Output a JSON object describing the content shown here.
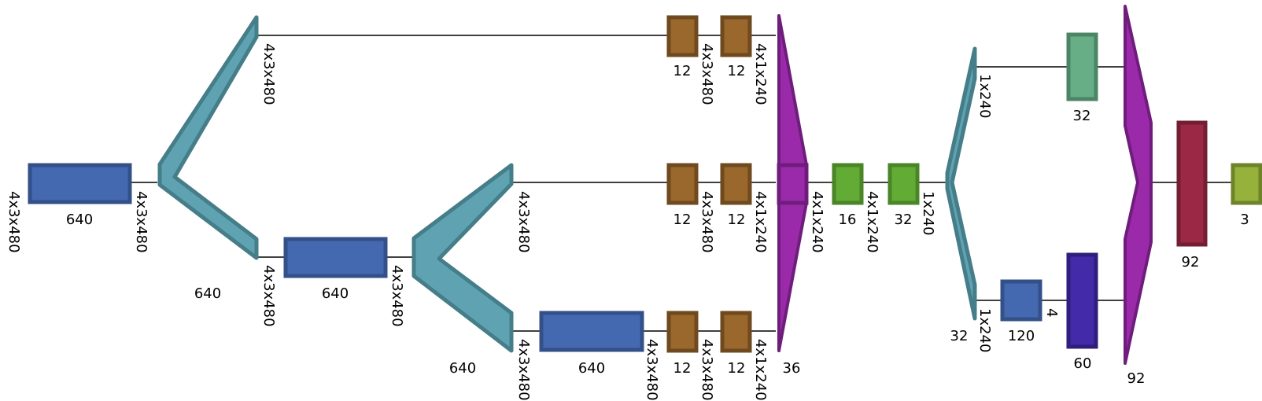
{
  "colors": {
    "edge": "#000000",
    "dense_blue": "#4469b0",
    "dense_blue_stroke": "#345089",
    "split_teal": "#5fa3b2",
    "split_teal_stroke": "#457d89",
    "conv_brown": "#9a672c",
    "conv_brown_stroke": "#6e4a1e",
    "concat_purple": "#9b2aaa",
    "concat_purple_stroke": "#6f1d7c",
    "green": "#62ac35",
    "green_stroke": "#4a8527",
    "light_green": "#67ae87",
    "light_green_stroke": "#4c8466",
    "indigo": "#422aa8",
    "indigo_stroke": "#2f1e7a",
    "crimson": "#9b2945",
    "crimson_stroke": "#721e33",
    "olive": "#97b23a",
    "olive_stroke": "#6f832a"
  },
  "labels": {
    "input_shape": "4x3x480",
    "dense1_units": "640",
    "dense1_out": "4x3x480",
    "split1_top_out": "4x3x480",
    "split1_units": "640",
    "split1_bottom_out": "4x3x480",
    "dense2_units": "640",
    "dense2_out": "4x3x480",
    "split2_top_out": "4x3x480",
    "split2_units": "640",
    "split2_bottom_out": "4x3x480",
    "dense3_units": "640",
    "dense3_out": "4x3x480",
    "conv_top_a_units": "12",
    "conv_top_a_out": "4x3x480",
    "conv_top_b_units": "12",
    "conv_top_b_out": "4x1x240",
    "conv_mid_a_units": "12",
    "conv_mid_a_out": "4x3x480",
    "conv_mid_b_units": "12",
    "conv_mid_b_out": "4x1x240",
    "conv_bot_a_units": "12",
    "conv_bot_a_out": "4x3x480",
    "conv_bot_b_units": "12",
    "conv_bot_b_out": "4x1x240",
    "concat1_units": "36",
    "concat1_out": "4x1x240",
    "green1_units": "16",
    "green1_out": "4x1x240",
    "green2_units": "32",
    "green2_out": "1x240",
    "split3_top_out": "1x240",
    "split3_units": "32",
    "split3_bottom_out": "1x240",
    "lightgreen_units": "32",
    "dense4_units": "120",
    "dense4_out": "4",
    "indigo_units": "60",
    "concat2_units": "92",
    "crimson_units": "92",
    "output_units": "3"
  }
}
